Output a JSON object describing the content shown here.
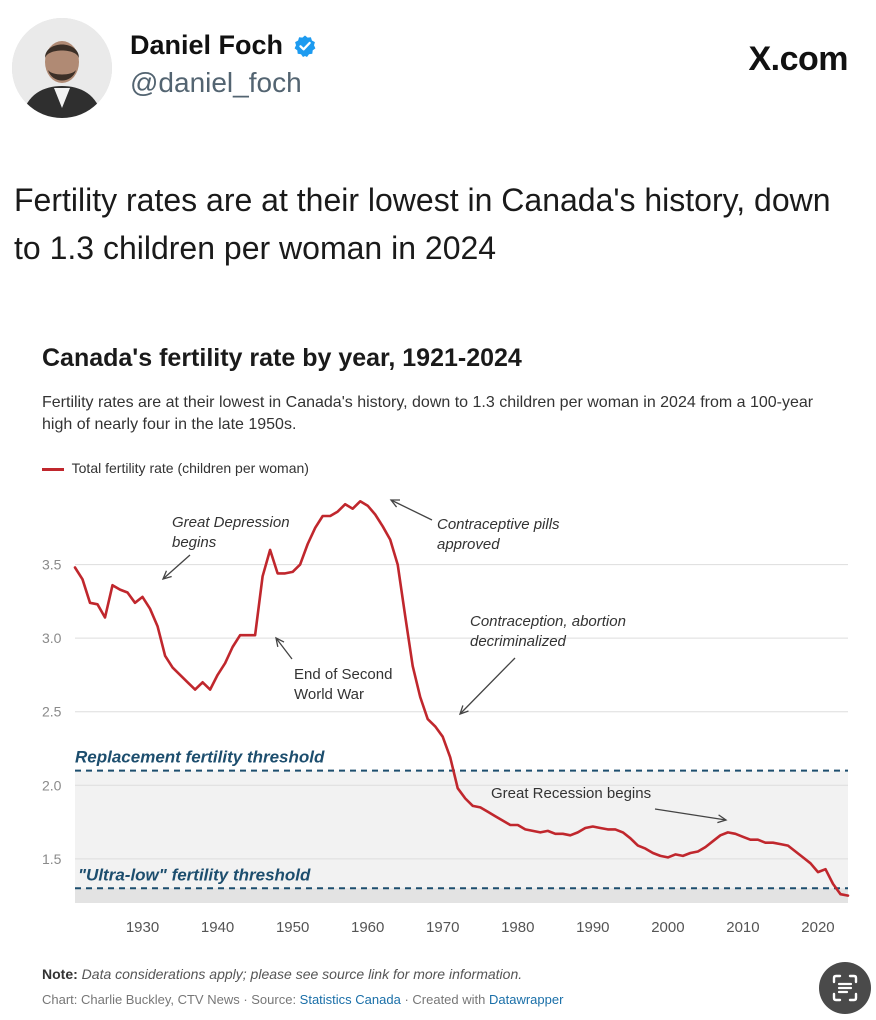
{
  "post": {
    "author_name": "Daniel Foch",
    "handle": "@daniel_foch",
    "site": "X.com",
    "text": "Fertility rates are at their lowest in Canada's history, down to 1.3 children per woman in 2024"
  },
  "icons": {
    "avatar": "avatar-photo",
    "verified": "verified-badge-icon",
    "scan": "text-scan-icon"
  },
  "colors": {
    "line": "#c0272d",
    "threshold": "#1d4e6e",
    "band": "#efefef",
    "verified": "#1d9bf0"
  },
  "chart_data": {
    "type": "line",
    "title": "Canada's fertility rate by year, 1921-2024",
    "subtitle": "Fertility rates are at their lowest in Canada's history, down to 1.3 children per woman in 2024 from a 100-year high of nearly four in the late 1950s.",
    "legend": "Total fertility rate (children per woman)",
    "xlabel": "",
    "ylabel": "",
    "xlim": [
      1921,
      2024
    ],
    "ylim": [
      1.2,
      4.0
    ],
    "x_ticks": [
      1930,
      1940,
      1950,
      1960,
      1970,
      1980,
      1990,
      2000,
      2010,
      2020
    ],
    "y_ticks": [
      1.5,
      2.0,
      2.5,
      3.0,
      3.5
    ],
    "series": [
      {
        "name": "Total fertility rate (children per woman)",
        "x": [
          1921,
          1922,
          1923,
          1924,
          1925,
          1926,
          1927,
          1928,
          1929,
          1930,
          1931,
          1932,
          1933,
          1934,
          1935,
          1936,
          1937,
          1938,
          1939,
          1940,
          1941,
          1942,
          1943,
          1944,
          1945,
          1946,
          1947,
          1948,
          1949,
          1950,
          1951,
          1952,
          1953,
          1954,
          1955,
          1956,
          1957,
          1958,
          1959,
          1960,
          1961,
          1962,
          1963,
          1964,
          1965,
          1966,
          1967,
          1968,
          1969,
          1970,
          1971,
          1972,
          1973,
          1974,
          1975,
          1976,
          1977,
          1978,
          1979,
          1980,
          1981,
          1982,
          1983,
          1984,
          1985,
          1986,
          1987,
          1988,
          1989,
          1990,
          1991,
          1992,
          1993,
          1994,
          1995,
          1996,
          1997,
          1998,
          1999,
          2000,
          2001,
          2002,
          2003,
          2004,
          2005,
          2006,
          2007,
          2008,
          2009,
          2010,
          2011,
          2012,
          2013,
          2014,
          2015,
          2016,
          2017,
          2018,
          2019,
          2020,
          2021,
          2022,
          2023,
          2024
        ],
        "values": [
          3.48,
          3.4,
          3.24,
          3.23,
          3.14,
          3.36,
          3.33,
          3.31,
          3.24,
          3.28,
          3.2,
          3.08,
          2.88,
          2.8,
          2.75,
          2.7,
          2.65,
          2.7,
          2.65,
          2.75,
          2.83,
          2.94,
          3.02,
          3.02,
          3.02,
          3.42,
          3.6,
          3.44,
          3.44,
          3.45,
          3.5,
          3.64,
          3.75,
          3.83,
          3.83,
          3.86,
          3.91,
          3.88,
          3.93,
          3.9,
          3.84,
          3.76,
          3.67,
          3.5,
          3.15,
          2.81,
          2.6,
          2.45,
          2.4,
          2.33,
          2.19,
          1.98,
          1.91,
          1.86,
          1.85,
          1.82,
          1.79,
          1.76,
          1.73,
          1.73,
          1.7,
          1.69,
          1.68,
          1.69,
          1.67,
          1.67,
          1.66,
          1.68,
          1.71,
          1.72,
          1.71,
          1.7,
          1.7,
          1.68,
          1.64,
          1.59,
          1.57,
          1.54,
          1.52,
          1.51,
          1.53,
          1.52,
          1.54,
          1.55,
          1.58,
          1.62,
          1.66,
          1.68,
          1.67,
          1.65,
          1.63,
          1.63,
          1.61,
          1.61,
          1.6,
          1.59,
          1.55,
          1.51,
          1.47,
          1.41,
          1.43,
          1.33,
          1.26,
          1.25
        ]
      }
    ],
    "thresholds": [
      {
        "label": "Replacement fertility threshold",
        "value": 2.1
      },
      {
        "label": "\"Ultra-low\" fertility threshold",
        "value": 1.3
      }
    ],
    "annotations": [
      {
        "id": "great-depression",
        "lines": [
          "Great Depression",
          "begins"
        ],
        "year": 1932
      },
      {
        "id": "end-ww2",
        "lines": [
          "End of Second",
          "World War"
        ],
        "year": 1945
      },
      {
        "id": "pill",
        "lines": [
          "Contraceptive pills",
          "approved"
        ],
        "year": 1961
      },
      {
        "id": "decriminalized",
        "lines": [
          "Contraception, abortion",
          "decriminalized"
        ],
        "year": 1969
      },
      {
        "id": "great-recession",
        "lines": [
          "Great Recession begins"
        ],
        "year": 2008
      }
    ],
    "note_label": "Note:",
    "note": "Data considerations apply; please see source link for more information.",
    "credits": {
      "prefix": "Chart: Charlie Buckley, CTV News · Source: ",
      "source": "Statistics Canada",
      "middle": " · Created with ",
      "tool": "Datawrapper"
    }
  }
}
